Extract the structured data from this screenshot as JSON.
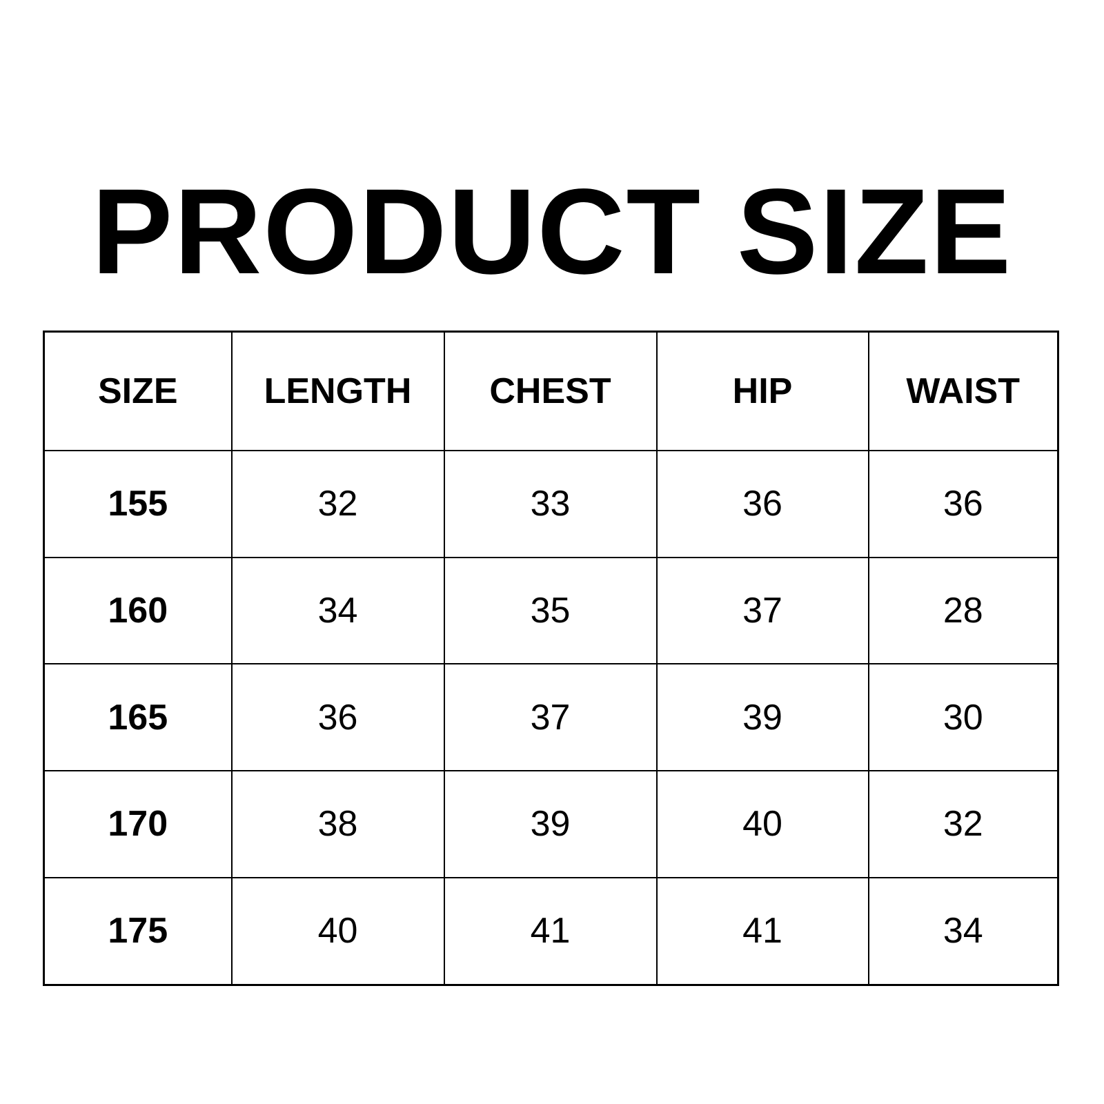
{
  "title": "PRODUCT SIZE",
  "table": {
    "headers": [
      "SIZE",
      "LENGTH",
      "CHEST",
      "HIP",
      "WAIST"
    ],
    "rows": [
      [
        "155",
        "32",
        "33",
        "36",
        "36"
      ],
      [
        "160",
        "34",
        "35",
        "37",
        "28"
      ],
      [
        "165",
        "36",
        "37",
        "39",
        "30"
      ],
      [
        "170",
        "38",
        "39",
        "40",
        "32"
      ],
      [
        "175",
        "40",
        "41",
        "41",
        "34"
      ]
    ]
  }
}
